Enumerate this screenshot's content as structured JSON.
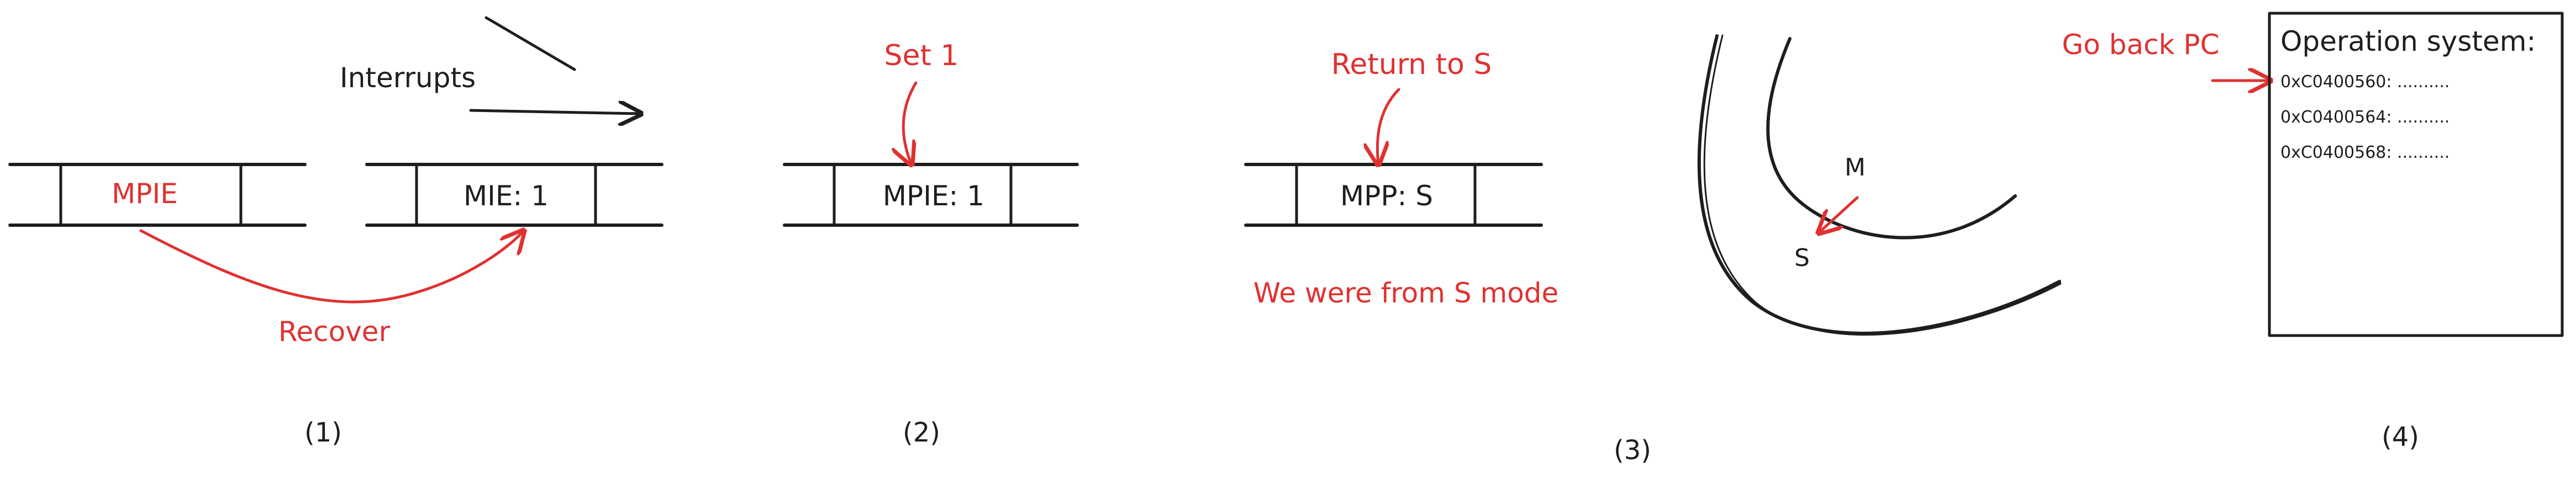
{
  "colors": {
    "ink": "#1e1e1e",
    "accent": "#e03131",
    "background": "#ffffff"
  },
  "panel1": {
    "register_a": "MPIE",
    "register_b": "MIE: 1",
    "interrupts_label": "Interrupts",
    "recover_label": "Recover",
    "caption": "(1)"
  },
  "panel2": {
    "register": "MPIE: 1",
    "set_label": "Set 1",
    "caption": "(2)"
  },
  "panel3": {
    "register": "MPP: S",
    "return_label": "Return to S",
    "from_label": "We were from S mode",
    "mode_m": "M",
    "mode_s": "S",
    "caption": "(3)"
  },
  "panel4": {
    "go_back_label": "Go back PC",
    "os_title": "Operation system:",
    "addresses": [
      "0xC0400560: ..........",
      "0xC0400564: ..........",
      "0xC0400568: .........."
    ],
    "caption": "(4)"
  }
}
